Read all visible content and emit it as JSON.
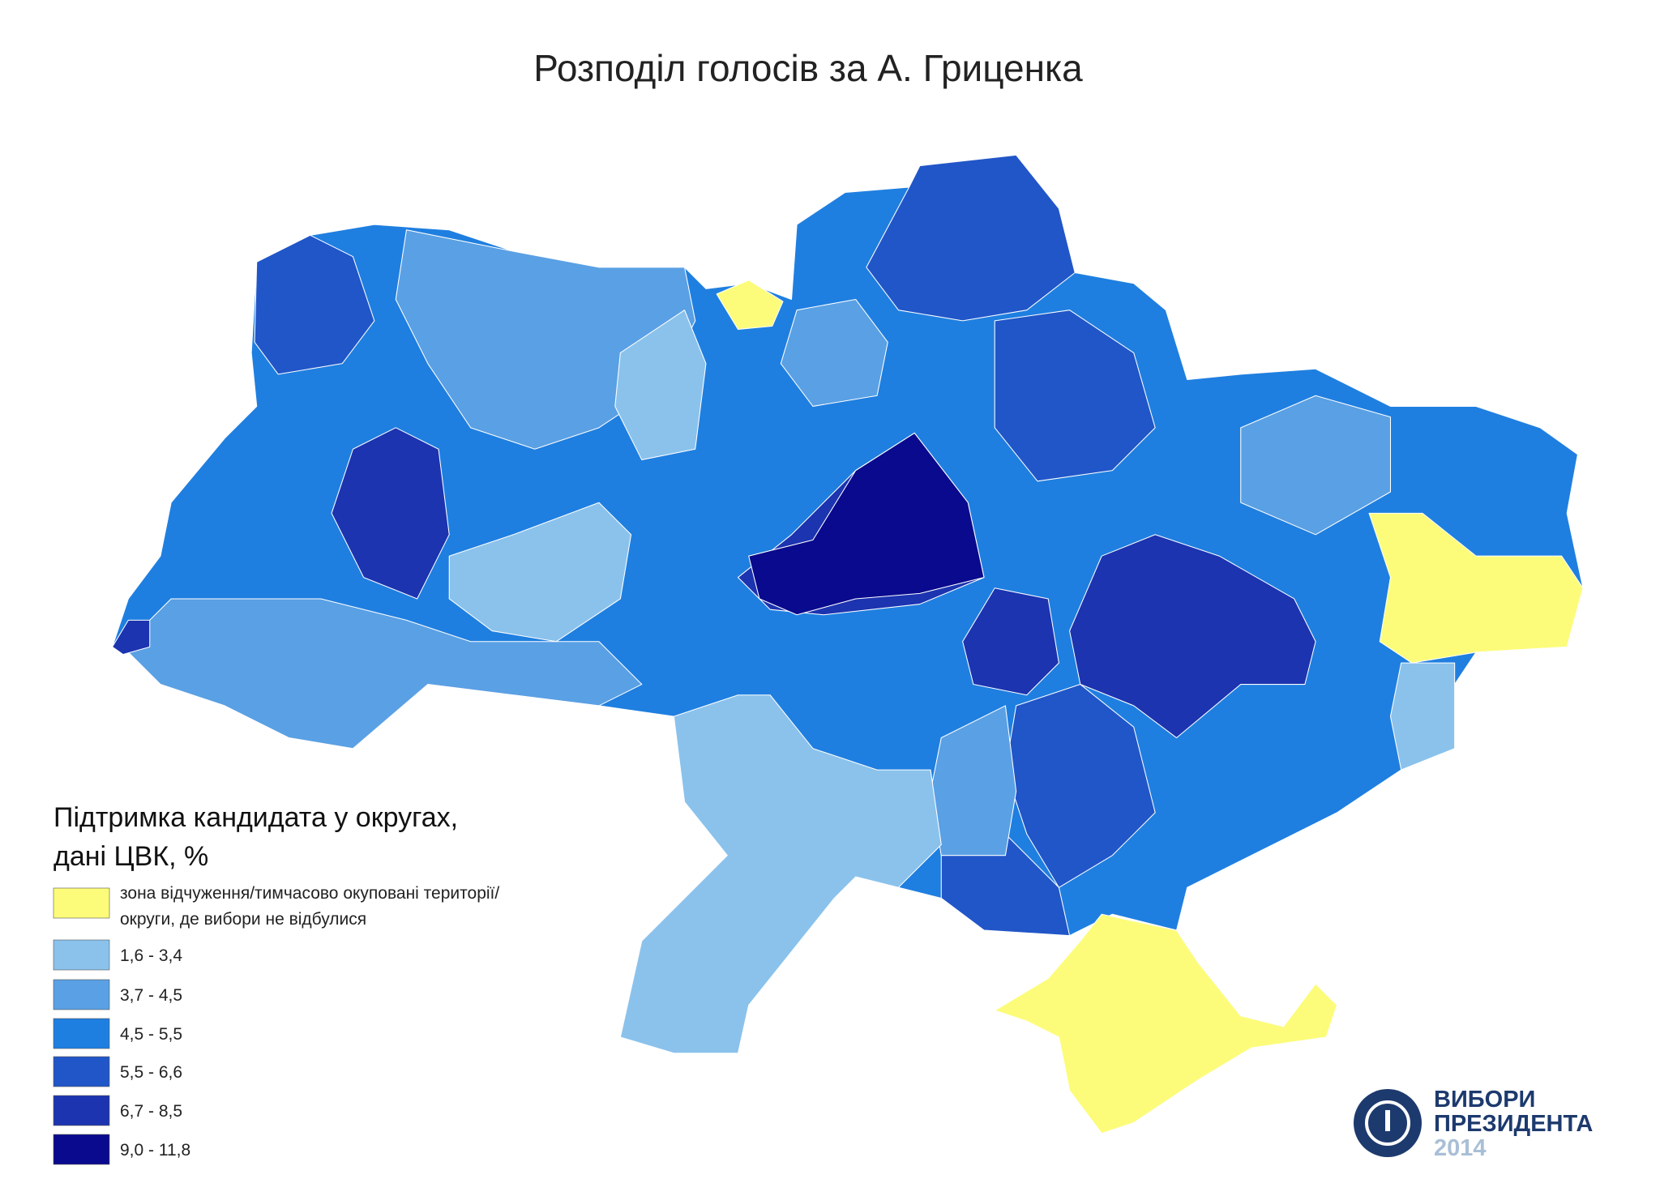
{
  "title": "Розподіл голосів за А. Гриценка",
  "legend": {
    "title_lines": [
      "Підтримка кандидата у округах,",
      "дані ЦВК, %"
    ],
    "items": [
      {
        "color": "#fcfc7a",
        "label_lines": [
          "зона відчуження/тимчасово окуповані території/",
          "округи, де вибори не відбулися"
        ]
      },
      {
        "color": "#8ac2ec",
        "label": "1,6 - 3,4"
      },
      {
        "color": "#5aa0e4",
        "label": "3,7 - 4,5"
      },
      {
        "color": "#1f7fe0",
        "label": "4,5 - 5,5"
      },
      {
        "color": "#2156c8",
        "label": "5,5 - 6,6"
      },
      {
        "color": "#1c34b0",
        "label": "6,7 - 8,5"
      },
      {
        "color": "#0a0a8e",
        "label": "9,0 - 11,8"
      }
    ]
  },
  "logo": {
    "lines": [
      "ВИБОРИ",
      "ПРЕЗИДЕНТА",
      "2014"
    ]
  }
}
